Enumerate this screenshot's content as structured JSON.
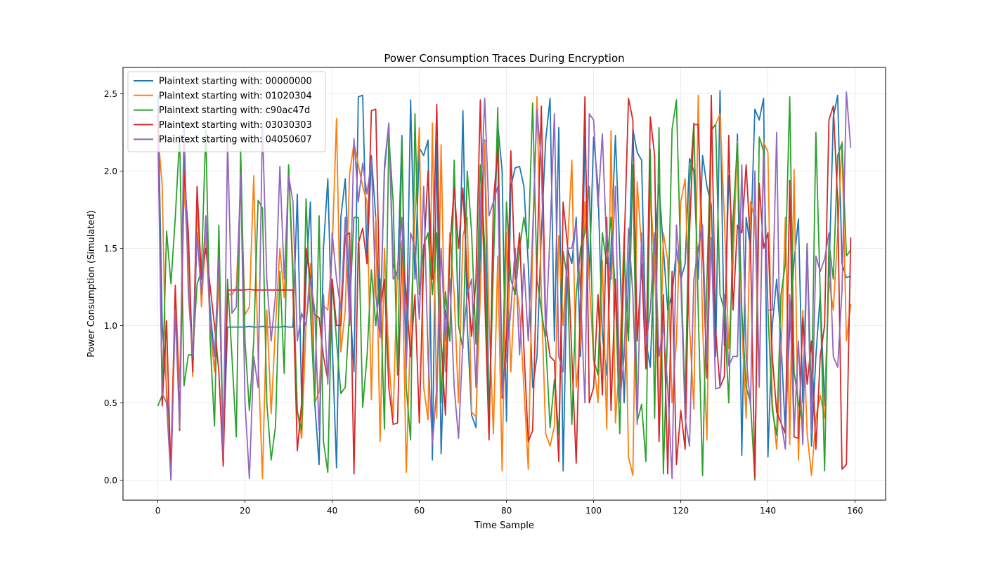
{
  "chart_data": {
    "type": "line",
    "title": "Power Consumption Traces During Encryption",
    "xlabel": "Time Sample",
    "ylabel": "Power Consumption (Simulated)",
    "xlim": [
      -8,
      167
    ],
    "ylim": [
      -0.13,
      2.67
    ],
    "xticks": [
      0,
      20,
      40,
      60,
      80,
      100,
      120,
      140,
      160
    ],
    "yticks": [
      0.0,
      0.5,
      1.0,
      1.5,
      2.0,
      2.5
    ],
    "grid": true,
    "legend_position": "top-left",
    "series": [
      {
        "name": "Plaintext starting with: 00000000",
        "color": "#1f77b4",
        "values": [
          2.49,
          1.0,
          0.6,
          0.05,
          1.2,
          0.4,
          2.1,
          1.5,
          0.7,
          1.6,
          1.2,
          1.7,
          1.1,
          0.8,
          1.4,
          0.2,
          0.99,
          0.99,
          0.99,
          0.99,
          0.99,
          0.995,
          0.99,
          0.99,
          0.995,
          0.99,
          0.99,
          0.99,
          0.99,
          0.995,
          0.99,
          0.99,
          1.85,
          0.5,
          1.3,
          1.8,
          0.5,
          0.1,
          1.5,
          1.95,
          0.9,
          0.08,
          1.7,
          1.95,
          1.2,
          0.7,
          2.48,
          2.49,
          1.4,
          2.1,
          1.7,
          1.0,
          2.0,
          2.3,
          1.4,
          1.3,
          2.23,
          0.8,
          2.46,
          1.3,
          2.15,
          2.1,
          2.2,
          0.13,
          2.2,
          0.17,
          1.1,
          0.9,
          2.0,
          1.0,
          2.39,
          1.0,
          0.42,
          0.34,
          1.5,
          2.2,
          0.4,
          1.4,
          2.3,
          2.0,
          0.38,
          1.9,
          2.02,
          2.03,
          1.9,
          1.4,
          0.6,
          0.8,
          1.6,
          2.2,
          2.47,
          0.9,
          2.28,
          0.06,
          1.5,
          1.4,
          1.7,
          0.8,
          2.23,
          1.3,
          2.22,
          1.9,
          0.94,
          0.68,
          1.5,
          2.23,
          1.47,
          0.5,
          1.3,
          2.27,
          2.12,
          2.07,
          0.9,
          0.73,
          1.5,
          1.91,
          1.5,
          1.1,
          1.2,
          1.49,
          1.3,
          1.4,
          2.08,
          2.0,
          1.3,
          2.1,
          1.9,
          1.78,
          0.8,
          2.52,
          0.87,
          1.97,
          1.5,
          2.24,
          0.16,
          1.7,
          1.5,
          2.4,
          2.33,
          2.47,
          0.15,
          1.0,
          1.3,
          0.9,
          0.3,
          1.0,
          1.42,
          1.69,
          0.5,
          1.53,
          0.22,
          0.8,
          1.2,
          0.48,
          1.3,
          2.35,
          2.49,
          1.4,
          1.31,
          1.32
        ]
      },
      {
        "name": "Plaintext starting with: 01020304",
        "color": "#ff7f0e",
        "values": [
          2.25,
          1.9,
          0.5,
          0.16,
          1.25,
          0.6,
          1.9,
          1.4,
          0.67,
          1.8,
          1.12,
          1.6,
          1.0,
          0.7,
          1.3,
          0.3,
          1.2,
          1.2,
          1.25,
          1.9,
          1.07,
          1.12,
          1.97,
          0.8,
          0.01,
          1.1,
          0.43,
          1.0,
          1.5,
          1.18,
          2.02,
          1.4,
          0.44,
          0.27,
          1.0,
          1.4,
          0.5,
          0.57,
          1.13,
          1.1,
          1.48,
          2.34,
          0.83,
          1.1,
          1.98,
          2.18,
          2.04,
          1.9,
          1.8,
          0.52,
          1.7,
          0.25,
          1.5,
          0.78,
          0.4,
          1.4,
          1.55,
          0.05,
          1.0,
          1.7,
          2.28,
          0.6,
          0.39,
          2.31,
          0.4,
          2.17,
          0.7,
          1.6,
          1.2,
          0.5,
          1.58,
          1.7,
          0.44,
          0.41,
          1.2,
          2.19,
          1.05,
          0.3,
          1.45,
          0.06,
          1.6,
          0.7,
          1.3,
          1.1,
          0.6,
          0.07,
          1.5,
          2.48,
          1.2,
          0.3,
          0.22,
          0.35,
          1.58,
          1.0,
          1.5,
          2.07,
          0.6,
          0.9,
          1.8,
          1.3,
          0.78,
          0.5,
          1.42,
          0.33,
          2.26,
          0.37,
          0.8,
          1.6,
          0.15,
          0.03,
          1.93,
          1.5,
          0.73,
          1.87,
          1.4,
          0.36,
          1.6,
          1.42,
          0.5,
          0.9,
          1.8,
          1.95,
          1.0,
          0.46,
          2.49,
          1.0,
          0.26,
          2.26,
          2.3,
          2.37,
          1.7,
          0.85,
          1.4,
          2.19,
          1.0,
          0.4,
          1.8,
          1.7,
          0.6,
          2.19,
          2.12,
          0.5,
          0.2,
          0.8,
          1.7,
          0.23,
          2.01,
          0.13,
          1.1,
          0.3,
          0.03,
          0.4,
          0.55,
          0.4,
          1.3,
          1.1,
          1.6,
          2.19,
          0.9,
          1.14
        ]
      },
      {
        "name": "Plaintext starting with: c90ac47d",
        "color": "#2ca02c",
        "values": [
          0.48,
          0.55,
          1.61,
          1.27,
          1.7,
          2.23,
          0.61,
          0.81,
          0.81,
          1.27,
          1.35,
          2.27,
          0.9,
          0.35,
          1.65,
          0.2,
          1.3,
          0.8,
          0.28,
          2.14,
          0.9,
          0.45,
          0.9,
          1.81,
          1.76,
          0.5,
          0.13,
          0.35,
          1.35,
          0.69,
          2.04,
          1.3,
          0.45,
          0.32,
          1.82,
          1.1,
          0.5,
          1.71,
          0.25,
          0.05,
          1.3,
          0.9,
          0.56,
          0.6,
          1.1,
          1.7,
          1.7,
          0.47,
          0.8,
          1.36,
          1.0,
          1.3,
          0.33,
          2.23,
          1.8,
          0.68,
          2.2,
          0.6,
          0.26,
          2.37,
          1.2,
          1.52,
          1.6,
          1.2,
          1.6,
          0.5,
          1.22,
          0.9,
          2.07,
          1.0,
          0.85,
          2.0,
          1.6,
          0.88,
          2.04,
          1.51,
          0.35,
          1.4,
          2.41,
          0.6,
          1.8,
          1.3,
          1.2,
          1.5,
          1.7,
          1.5,
          2.44,
          1.3,
          1.1,
          0.9,
          0.34,
          0.65,
          0.29,
          1.48,
          1.3,
          0.36,
          1.2,
          1.5,
          1.6,
          1.9,
          0.78,
          0.68,
          1.6,
          1.4,
          1.7,
          1.2,
          0.3,
          1.46,
          0.9,
          2.04,
          0.38,
          0.49,
          0.12,
          2.14,
          0.4,
          2.28,
          0.04,
          1.0,
          2.27,
          2.46,
          1.4,
          0.5,
          1.9,
          2.31,
          1.1,
          0.03,
          1.3,
          2.27,
          2.3,
          1.2,
          1.1,
          0.5,
          1.7,
          2.18,
          1.1,
          0.6,
          0.5,
          0.0,
          2.22,
          2.13,
          1.1,
          0.45,
          0.29,
          1.2,
          1.4,
          2.48,
          0.7,
          0.5,
          0.36,
          1.53,
          0.5,
          2.25,
          1.2,
          0.06,
          1.54,
          1.3,
          2.1,
          2.18,
          1.45,
          1.49
        ]
      },
      {
        "name": "Plaintext starting with: 03030303",
        "color": "#d62728",
        "values": [
          2.4,
          0.48,
          1.03,
          0.01,
          1.26,
          0.32,
          2.0,
          1.6,
          0.7,
          1.9,
          1.3,
          1.5,
          1.25,
          1.0,
          0.7,
          0.09,
          1.23,
          1.23,
          1.23,
          1.23,
          1.23,
          1.235,
          1.23,
          1.23,
          1.23,
          1.23,
          1.23,
          1.23,
          1.23,
          1.23,
          1.23,
          1.23,
          0.19,
          0.5,
          1.5,
          1.3,
          1.07,
          1.05,
          0.8,
          0.65,
          1.3,
          1.0,
          1.0,
          1.58,
          1.6,
          0.04,
          1.53,
          1.63,
          1.4,
          2.39,
          2.4,
          1.1,
          1.3,
          0.6,
          0.36,
          0.37,
          1.5,
          1.2,
          0.8,
          1.2,
          0.37,
          1.44,
          2.0,
          1.3,
          2.43,
          0.89,
          0.42,
          1.5,
          1.89,
          1.5,
          1.89,
          1.3,
          0.93,
          1.3,
          2.46,
          1.2,
          0.26,
          1.8,
          2.15,
          0.53,
          0.9,
          2.13,
          1.3,
          1.6,
          0.85,
          0.25,
          0.32,
          1.4,
          2.42,
          1.0,
          0.8,
          0.77,
          0.12,
          1.8,
          1.52,
          0.8,
          0.11,
          1.2,
          2.48,
          0.5,
          0.6,
          1.2,
          0.55,
          1.7,
          0.45,
          1.3,
          0.6,
          1.5,
          2.47,
          2.33,
          0.9,
          1.4,
          0.72,
          2.35,
          2.1,
          0.25,
          1.2,
          0.04,
          1.35,
          0.1,
          0.45,
          0.2,
          1.6,
          2.3,
          2.3,
          1.5,
          0.66,
          2.49,
          0.97,
          0.6,
          0.67,
          2.23,
          1.1,
          1.65,
          1.6,
          2.04,
          1.5,
          0.02,
          1.92,
          1.5,
          1.6,
          0.8,
          0.44,
          0.37,
          0.3,
          1.94,
          0.28,
          0.27,
          1.05,
          0.62,
          0.9,
          0.2,
          0.8,
          1.0,
          2.33,
          2.42,
          1.8,
          0.07,
          0.1,
          1.57
        ]
      },
      {
        "name": "Plaintext starting with: 04050607",
        "color": "#9467bd",
        "values": [
          2.26,
          0.56,
          0.5,
          0.0,
          1.1,
          0.34,
          2.33,
          1.2,
          0.8,
          1.6,
          1.2,
          1.71,
          1.0,
          0.8,
          1.44,
          0.15,
          2.2,
          1.08,
          1.12,
          1.98,
          0.5,
          0.01,
          0.8,
          0.6,
          2.3,
          1.3,
          0.9,
          1.2,
          2.03,
          1.3,
          1.97,
          1.8,
          0.9,
          1.08,
          1.0,
          1.3,
          1.1,
          0.32,
          1.2,
          0.62,
          1.6,
          1.3,
          1.1,
          1.7,
          1.0,
          2.21,
          1.8,
          2.05,
          1.85,
          2.07,
          1.2,
          0.92,
          2.04,
          2.31,
          1.3,
          1.35,
          1.7,
          0.72,
          1.6,
          1.5,
          1.04,
          1.9,
          0.8,
          0.23,
          0.6,
          1.5,
          0.9,
          1.3,
          0.6,
          0.27,
          0.9,
          1.2,
          1.3,
          0.6,
          1.73,
          2.47,
          1.71,
          1.8,
          1.9,
          0.55,
          0.8,
          1.1,
          1.5,
          0.81,
          1.4,
          0.9,
          1.6,
          2.4,
          2.05,
          0.93,
          1.6,
          2.37,
          0.8,
          0.7,
          1.5,
          1.5,
          1.66,
          1.2,
          0.5,
          2.37,
          2.33,
          1.77,
          2.24,
          1.5,
          1.3,
          1.9,
          0.5,
          0.8,
          1.63,
          1.2,
          0.36,
          1.6,
          0.87,
          1.1,
          1.6,
          0.8,
          1.0,
          0.6,
          0.01,
          1.65,
          1.3,
          0.4,
          0.22,
          1.3,
          1.5,
          1.65,
          0.75,
          1.57,
          0.59,
          0.6,
          1.2,
          0.74,
          0.8,
          0.8,
          2.04,
          0.8,
          0.48,
          2.0,
          0.61,
          2.1,
          1.1,
          1.1,
          2.25,
          0.38,
          0.2,
          1.2,
          0.3,
          0.9,
          0.23,
          1.53,
          0.3,
          1.45,
          1.35,
          1.43,
          1.6,
          0.8,
          0.73,
          1.23,
          2.51,
          2.15
        ]
      }
    ]
  }
}
